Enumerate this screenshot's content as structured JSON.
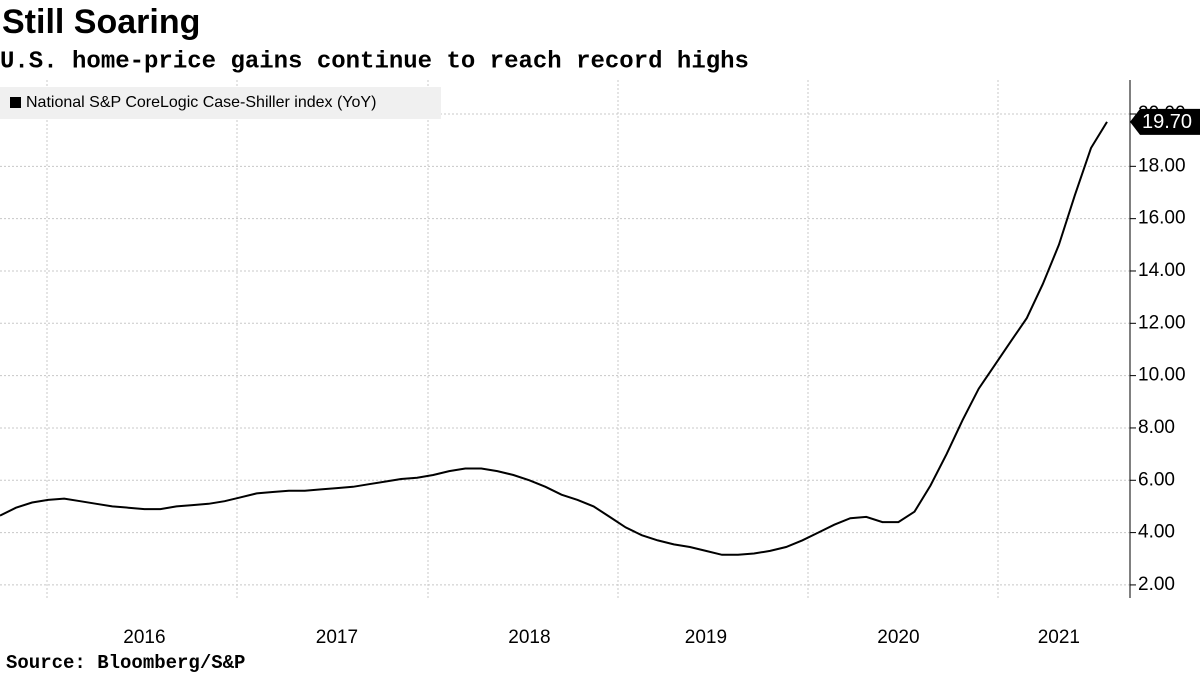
{
  "chart_data": {
    "type": "line",
    "title": "Still Soaring",
    "subtitle": "U.S. home-price gains continue to reach record highs",
    "source": "Source: Bloomberg/S&P",
    "categories": [
      null,
      null,
      null,
      null,
      null,
      null,
      null,
      null,
      null,
      "2016",
      null,
      null,
      null,
      null,
      null,
      null,
      null,
      null,
      null,
      null,
      null,
      "2017",
      null,
      null,
      null,
      null,
      null,
      null,
      null,
      null,
      null,
      null,
      null,
      "2018",
      null,
      null,
      null,
      null,
      null,
      null,
      null,
      null,
      null,
      null,
      "2019",
      null,
      null,
      null,
      null,
      null,
      null,
      null,
      null,
      null,
      null,
      null,
      "2020",
      null,
      null,
      null,
      null,
      null,
      null,
      null,
      null,
      null,
      "2021",
      null,
      null,
      null
    ],
    "series": [
      {
        "name": "National S&P CoreLogic Case-Shiller index (YoY)",
        "color": "#000000",
        "values": [
          4.65,
          4.95,
          5.15,
          5.25,
          5.3,
          5.2,
          5.1,
          5.0,
          4.95,
          4.9,
          4.9,
          5.0,
          5.05,
          5.1,
          5.2,
          5.35,
          5.5,
          5.55,
          5.6,
          5.6,
          5.65,
          5.7,
          5.75,
          5.85,
          5.95,
          6.05,
          6.1,
          6.2,
          6.35,
          6.45,
          6.45,
          6.35,
          6.2,
          6.0,
          5.75,
          5.45,
          5.25,
          5.0,
          4.6,
          4.2,
          3.9,
          3.7,
          3.55,
          3.45,
          3.3,
          3.15,
          3.15,
          3.2,
          3.3,
          3.45,
          3.7,
          4.0,
          4.3,
          4.55,
          4.6,
          4.4,
          4.4,
          4.8,
          5.8,
          7.0,
          8.3,
          9.5,
          10.4,
          11.3,
          12.2,
          13.5,
          15.0,
          16.9,
          18.7,
          19.7
        ],
        "value_labels": [
          null,
          null,
          null,
          null,
          null,
          null,
          null,
          null,
          null,
          null,
          null,
          null,
          null,
          null,
          null,
          null,
          null,
          null,
          null,
          null,
          null,
          null,
          null,
          null,
          null,
          null,
          null,
          null,
          null,
          null,
          null,
          null,
          null,
          null,
          null,
          null,
          null,
          null,
          null,
          null,
          null,
          null,
          null,
          null,
          null,
          null,
          null,
          null,
          null,
          null,
          null,
          null,
          null,
          null,
          null,
          null,
          null,
          null,
          null,
          null,
          null,
          null,
          null,
          null,
          null,
          null,
          null,
          null,
          null,
          "19.70"
        ]
      }
    ],
    "ylim": [
      1.5,
      21.3
    ],
    "yticks": [
      {
        "value": 2,
        "label": "2.00"
      },
      {
        "value": 4,
        "label": "4.00"
      },
      {
        "value": 6,
        "label": "6.00"
      },
      {
        "value": 8,
        "label": "8.00"
      },
      {
        "value": 10,
        "label": "10.00"
      },
      {
        "value": 12,
        "label": "12.00"
      },
      {
        "value": 14,
        "label": "14.00"
      },
      {
        "value": 16,
        "label": "16.00"
      },
      {
        "value": 18,
        "label": "18.00"
      },
      {
        "value": 20,
        "label": "20.00"
      }
    ],
    "grid": true,
    "legend": "top-left"
  }
}
